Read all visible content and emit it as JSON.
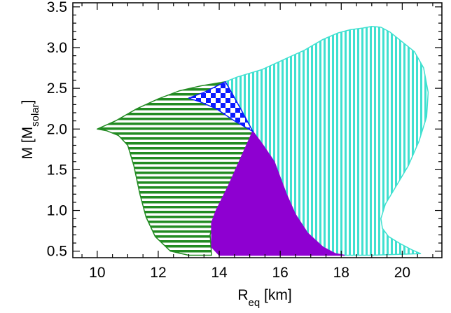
{
  "chart_data": {
    "type": "area",
    "title": "",
    "xlabel": {
      "main": "R",
      "sub": "eq",
      "unit": " [km]"
    },
    "ylabel": {
      "main": "M [M",
      "sub": "solar",
      "end": "]"
    },
    "xlim": [
      9.2,
      21.3
    ],
    "ylim": [
      0.42,
      3.55
    ],
    "xticks": [
      10,
      12,
      14,
      16,
      18,
      20
    ],
    "yticks": [
      0.5,
      1.0,
      1.5,
      2.0,
      2.5,
      3.0,
      3.5
    ],
    "xtick_labels": [
      "10",
      "12",
      "14",
      "16",
      "18",
      "20"
    ],
    "ytick_labels": [
      "0.5",
      "1.0",
      "1.5",
      "2.0",
      "2.5",
      "3.0",
      "3.5"
    ],
    "grid": false,
    "legend": "none",
    "series": [
      {
        "key": "cyan-region",
        "fill": "vertical-stripes",
        "color": "#40e0d0",
        "points": [
          [
            14.2,
            2.58
          ],
          [
            14.6,
            2.64
          ],
          [
            15.4,
            2.73
          ],
          [
            16.1,
            2.85
          ],
          [
            16.8,
            2.97
          ],
          [
            17.4,
            3.1
          ],
          [
            17.9,
            3.18
          ],
          [
            18.3,
            3.22
          ],
          [
            18.7,
            3.24
          ],
          [
            19.0,
            3.26
          ],
          [
            19.3,
            3.25
          ],
          [
            19.6,
            3.19
          ],
          [
            20.0,
            3.07
          ],
          [
            20.4,
            2.95
          ],
          [
            20.7,
            2.75
          ],
          [
            20.85,
            2.45
          ],
          [
            20.8,
            2.15
          ],
          [
            20.55,
            1.85
          ],
          [
            20.2,
            1.55
          ],
          [
            19.8,
            1.3
          ],
          [
            19.45,
            1.08
          ],
          [
            19.3,
            0.9
          ],
          [
            19.35,
            0.78
          ],
          [
            19.55,
            0.68
          ],
          [
            19.9,
            0.6
          ],
          [
            20.3,
            0.52
          ],
          [
            20.6,
            0.47
          ],
          [
            19.0,
            0.45
          ],
          [
            18.1,
            0.45
          ],
          [
            17.8,
            0.47
          ],
          [
            17.4,
            0.55
          ],
          [
            16.9,
            0.72
          ],
          [
            16.5,
            0.95
          ],
          [
            16.2,
            1.2
          ],
          [
            16.0,
            1.4
          ],
          [
            15.8,
            1.6
          ],
          [
            15.4,
            1.82
          ],
          [
            15.1,
            1.97
          ],
          [
            14.7,
            2.25
          ],
          [
            14.4,
            2.45
          ]
        ]
      },
      {
        "key": "green-region",
        "fill": "horizontal-stripes",
        "color": "#228b22",
        "points": [
          [
            10.0,
            2.0
          ],
          [
            10.6,
            2.1
          ],
          [
            11.3,
            2.25
          ],
          [
            12.0,
            2.37
          ],
          [
            12.7,
            2.47
          ],
          [
            13.4,
            2.53
          ],
          [
            14.2,
            2.58
          ],
          [
            14.4,
            2.45
          ],
          [
            14.7,
            2.25
          ],
          [
            15.1,
            1.97
          ],
          [
            14.3,
            1.3
          ],
          [
            13.9,
            0.95
          ],
          [
            13.7,
            0.7
          ],
          [
            13.75,
            0.45
          ],
          [
            13.0,
            0.45
          ],
          [
            12.4,
            0.5
          ],
          [
            11.9,
            0.68
          ],
          [
            11.6,
            0.92
          ],
          [
            11.4,
            1.2
          ],
          [
            11.2,
            1.55
          ],
          [
            11.0,
            1.8
          ],
          [
            10.7,
            1.92
          ],
          [
            10.3,
            1.98
          ]
        ]
      },
      {
        "key": "purple-region",
        "fill": "solid",
        "color": "#8e00d1",
        "points": [
          [
            15.1,
            1.97
          ],
          [
            15.4,
            1.82
          ],
          [
            15.8,
            1.6
          ],
          [
            16.2,
            1.2
          ],
          [
            16.5,
            0.95
          ],
          [
            16.9,
            0.72
          ],
          [
            17.4,
            0.55
          ],
          [
            17.8,
            0.47
          ],
          [
            18.1,
            0.45
          ],
          [
            14.0,
            0.45
          ],
          [
            13.75,
            0.55
          ],
          [
            13.75,
            0.85
          ],
          [
            13.9,
            1.0
          ],
          [
            14.1,
            1.15
          ],
          [
            14.3,
            1.3
          ]
        ]
      },
      {
        "key": "blue-region",
        "fill": "checkerboard",
        "color": "#0a1aff",
        "points": [
          [
            13.0,
            2.38
          ],
          [
            13.5,
            2.45
          ],
          [
            14.2,
            2.58
          ],
          [
            14.4,
            2.45
          ],
          [
            14.7,
            2.25
          ],
          [
            15.1,
            1.97
          ],
          [
            14.5,
            2.1
          ],
          [
            13.9,
            2.25
          ],
          [
            13.4,
            2.33
          ]
        ]
      }
    ]
  }
}
